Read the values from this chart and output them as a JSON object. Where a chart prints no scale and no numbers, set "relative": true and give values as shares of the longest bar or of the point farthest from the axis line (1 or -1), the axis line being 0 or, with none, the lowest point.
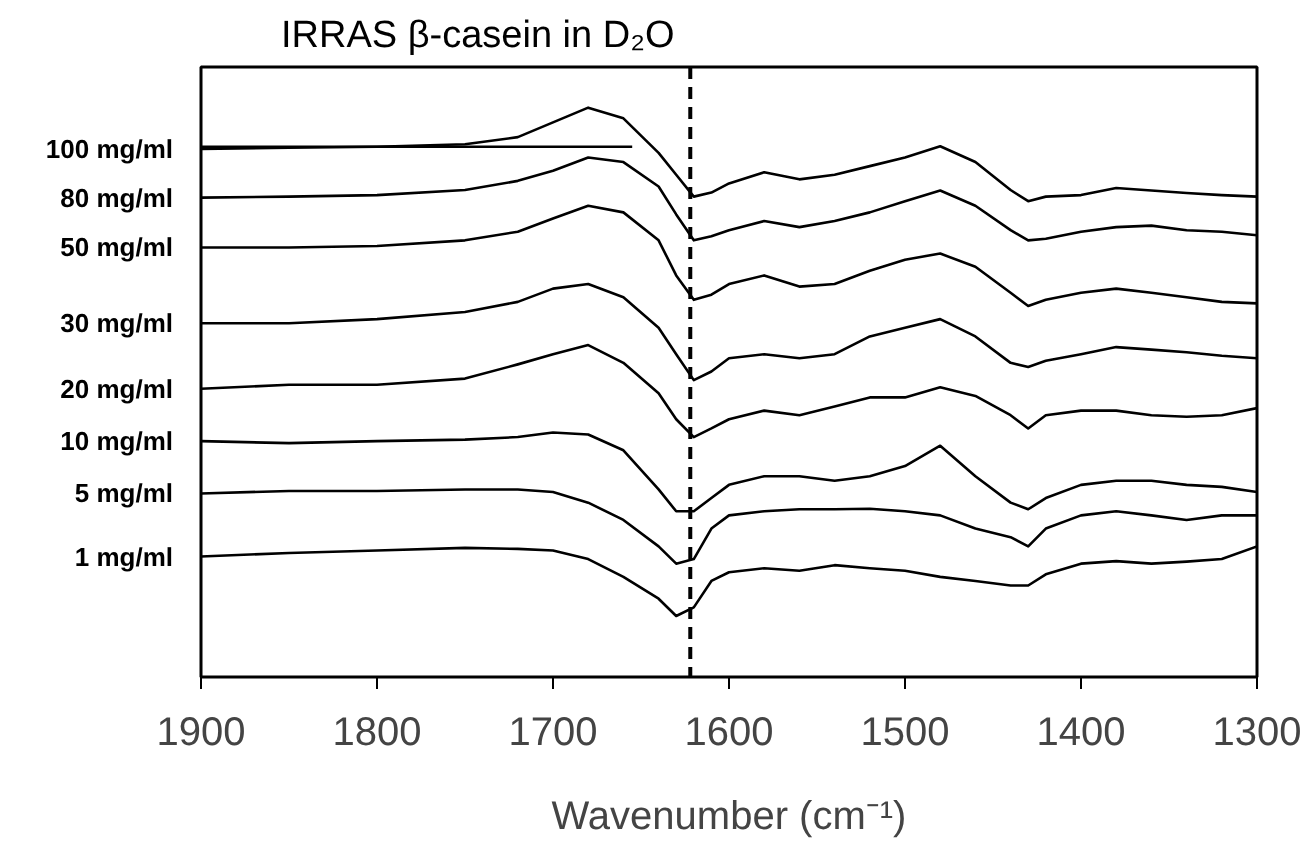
{
  "chart_data": {
    "type": "line",
    "title": "IRRAS β-casein in D₂O",
    "xlabel": "Wavenumber (cm⁻¹)",
    "relative": true,
    "tick_labels": "x",
    "grid": false,
    "marker": "none",
    "line_style": "solid",
    "xlim": [
      1900,
      1300
    ],
    "xticks": [
      1900,
      1800,
      1700,
      1600,
      1500,
      1400,
      1300
    ],
    "x": [
      1900,
      1850,
      1800,
      1750,
      1720,
      1700,
      1680,
      1660,
      1640,
      1630,
      1620,
      1610,
      1600,
      1580,
      1560,
      1540,
      1520,
      1500,
      1480,
      1460,
      1440,
      1430,
      1420,
      1400,
      1380,
      1360,
      1340,
      1320,
      1300
    ],
    "ref_lines": [
      {
        "axis": "x",
        "value": 1622,
        "line_style": "dashed",
        "color": "#000000"
      }
    ],
    "series": [
      {
        "name": "100 mg/ml",
        "color": "#000000",
        "values": [
          0.919,
          0.921,
          0.923,
          0.928,
          0.942,
          0.971,
          1,
          0.979,
          0.911,
          0.868,
          0.825,
          0.833,
          0.851,
          0.873,
          0.859,
          0.868,
          0.885,
          0.902,
          0.924,
          0.893,
          0.838,
          0.816,
          0.825,
          0.828,
          0.842,
          0.837,
          0.832,
          0.828,
          0.825
        ]
      },
      {
        "color": "#000000",
        "x": [
          1900,
          1655
        ],
        "values": [
          0.923,
          0.923
        ]
      },
      {
        "name": "80 mg/ml",
        "color": "#000000",
        "values": [
          0.823,
          0.825,
          0.828,
          0.838,
          0.856,
          0.876,
          0.902,
          0.893,
          0.845,
          0.79,
          0.739,
          0.747,
          0.759,
          0.777,
          0.765,
          0.777,
          0.794,
          0.816,
          0.837,
          0.807,
          0.759,
          0.739,
          0.742,
          0.756,
          0.765,
          0.768,
          0.759,
          0.756,
          0.749
        ]
      },
      {
        "name": "50 mg/ml",
        "color": "#000000",
        "values": [
          0.725,
          0.725,
          0.728,
          0.739,
          0.756,
          0.782,
          0.807,
          0.794,
          0.739,
          0.67,
          0.622,
          0.632,
          0.653,
          0.67,
          0.648,
          0.653,
          0.679,
          0.701,
          0.713,
          0.687,
          0.636,
          0.61,
          0.622,
          0.636,
          0.644,
          0.636,
          0.627,
          0.618,
          0.615
        ]
      },
      {
        "name": "30 mg/ml",
        "color": "#000000",
        "values": [
          0.576,
          0.576,
          0.584,
          0.598,
          0.618,
          0.644,
          0.653,
          0.627,
          0.567,
          0.515,
          0.464,
          0.481,
          0.507,
          0.515,
          0.507,
          0.515,
          0.55,
          0.567,
          0.584,
          0.55,
          0.498,
          0.49,
          0.502,
          0.515,
          0.529,
          0.524,
          0.519,
          0.512,
          0.507
        ]
      },
      {
        "name": "20 mg/ml",
        "color": "#000000",
        "values": [
          0.447,
          0.455,
          0.455,
          0.467,
          0.495,
          0.515,
          0.533,
          0.498,
          0.438,
          0.387,
          0.352,
          0.369,
          0.387,
          0.404,
          0.395,
          0.412,
          0.43,
          0.43,
          0.45,
          0.433,
          0.395,
          0.369,
          0.395,
          0.404,
          0.404,
          0.395,
          0.392,
          0.395,
          0.409
        ]
      },
      {
        "name": "10 mg/ml",
        "color": "#000000",
        "values": [
          0.344,
          0.34,
          0.344,
          0.347,
          0.352,
          0.361,
          0.357,
          0.326,
          0.249,
          0.206,
          0.206,
          0.232,
          0.258,
          0.275,
          0.275,
          0.266,
          0.275,
          0.295,
          0.335,
          0.275,
          0.223,
          0.21,
          0.232,
          0.258,
          0.266,
          0.266,
          0.258,
          0.254,
          0.244
        ]
      },
      {
        "name": "5 mg/ml",
        "color": "#000000",
        "values": [
          0.241,
          0.246,
          0.246,
          0.249,
          0.249,
          0.244,
          0.223,
          0.189,
          0.137,
          0.103,
          0.112,
          0.172,
          0.198,
          0.206,
          0.21,
          0.21,
          0.211,
          0.206,
          0.198,
          0.172,
          0.155,
          0.137,
          0.172,
          0.198,
          0.206,
          0.198,
          0.189,
          0.198,
          0.198
        ]
      },
      {
        "name": "1 mg/ml",
        "color": "#000000",
        "values": [
          0.117,
          0.124,
          0.129,
          0.134,
          0.132,
          0.129,
          0.112,
          0.077,
          0.034,
          0,
          0.017,
          0.069,
          0.086,
          0.094,
          0.089,
          0.1,
          0.094,
          0.089,
          0.077,
          0.069,
          0.06,
          0.06,
          0.082,
          0.103,
          0.108,
          0.103,
          0.107,
          0.112,
          0.137
        ]
      }
    ]
  }
}
